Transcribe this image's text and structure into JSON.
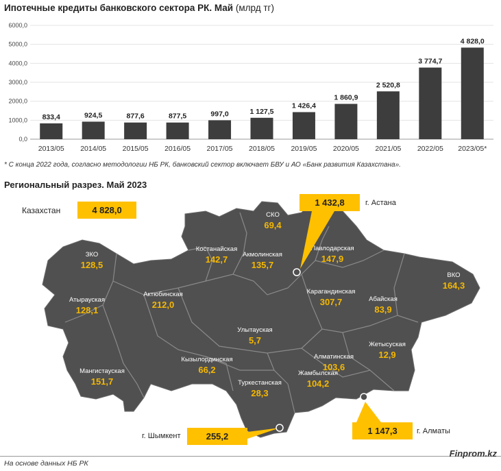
{
  "title": "Ипотечные кредиты банковского сектора РК. Май",
  "title_unit": "(млрд тг)",
  "footnote": "* С конца 2022 года, согласно методологии НБ РК, банковский сектор включает БВУ и АО «Банк развития Казахстана».",
  "map_title": "Региональный разрез. Май 2023",
  "source": "На основе данных НБ РК",
  "brand": "Finprom.kz",
  "colors": {
    "bar": "#3d3d3d",
    "map": "#505050",
    "accent": "#f5b800",
    "highlight": "#ffc000"
  },
  "chart_data": {
    "type": "bar",
    "title": "Ипотечные кредиты банковского сектора РК. Май",
    "categories": [
      "2013/05",
      "2014/05",
      "2015/05",
      "2016/05",
      "2017/05",
      "2018/05",
      "2019/05",
      "2020/05",
      "2021/05",
      "2022/05",
      "2023/05*"
    ],
    "values": [
      833.4,
      924.5,
      877.6,
      877.5,
      997.0,
      1127.5,
      1426.4,
      1860.9,
      2520.8,
      3774.7,
      4828.0
    ],
    "value_labels": [
      "833,4",
      "924,5",
      "877,6",
      "877,5",
      "997,0",
      "1 127,5",
      "1 426,4",
      "1 860,9",
      "2 520,8",
      "3 774,7",
      "4 828,0"
    ],
    "ylim": [
      0,
      6000
    ],
    "yticks": [
      "0,0",
      "1000,0",
      "2000,0",
      "3000,0",
      "4000,0",
      "5000,0",
      "6000,0"
    ],
    "grid": true
  },
  "map": {
    "country_label": "Казахстан",
    "country_value": "4 828,0",
    "regions": [
      {
        "name": "СКО",
        "value": "69,4"
      },
      {
        "name": "ЗКО",
        "value": "128,5"
      },
      {
        "name": "Костанайская",
        "value": "142,7"
      },
      {
        "name": "Акмолинская",
        "value": "135,7"
      },
      {
        "name": "Павлодарская",
        "value": "147,9"
      },
      {
        "name": "ВКО",
        "value": "164,3"
      },
      {
        "name": "Атырауская",
        "value": "128,1"
      },
      {
        "name": "Актюбинская",
        "value": "212,0"
      },
      {
        "name": "Карагандинская",
        "value": "307,7"
      },
      {
        "name": "Абайская",
        "value": "83,9"
      },
      {
        "name": "Улытауская",
        "value": "5,7"
      },
      {
        "name": "Жетысуская",
        "value": "12,9"
      },
      {
        "name": "Мангистауская",
        "value": "151,7"
      },
      {
        "name": "Кызылординская",
        "value": "66,2"
      },
      {
        "name": "Алматинская",
        "value": "103,6"
      },
      {
        "name": "Жамбылская",
        "value": "104,2"
      },
      {
        "name": "Туркестанская",
        "value": "28,3"
      }
    ],
    "cities": [
      {
        "name": "г. Астана",
        "value": "1 432,8"
      },
      {
        "name": "г. Шымкент",
        "value": "255,2"
      },
      {
        "name": "г. Алматы",
        "value": "1 147,3"
      }
    ]
  }
}
